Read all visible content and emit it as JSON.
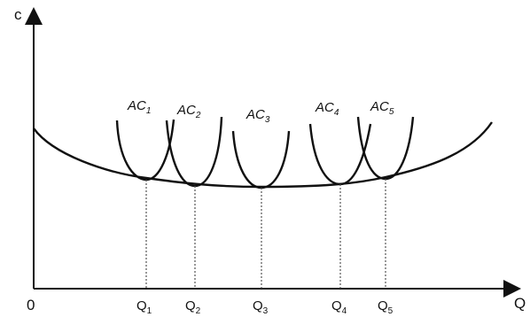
{
  "axes": {
    "y_label": "c",
    "x_label": "Q",
    "origin_label": "0"
  },
  "curves": [
    {
      "label": "AC",
      "sub": "1"
    },
    {
      "label": "AC",
      "sub": "2"
    },
    {
      "label": "AC",
      "sub": "3"
    },
    {
      "label": "AC",
      "sub": "4"
    },
    {
      "label": "AC",
      "sub": "5"
    }
  ],
  "quantities": [
    {
      "label": "Q",
      "sub": "1"
    },
    {
      "label": "Q",
      "sub": "2"
    },
    {
      "label": "Q",
      "sub": "3"
    },
    {
      "label": "Q",
      "sub": "4"
    },
    {
      "label": "Q",
      "sub": "5"
    }
  ],
  "colors": {
    "line": "#111111",
    "background": "#ffffff"
  }
}
